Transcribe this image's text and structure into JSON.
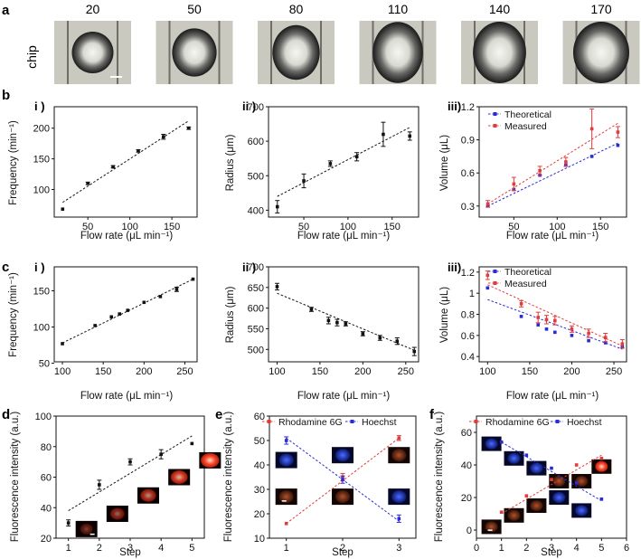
{
  "panel_labels": {
    "a": "a",
    "b": "b",
    "c": "c",
    "d": "d",
    "e": "e",
    "f": "f"
  },
  "row_a": {
    "side_label": "chip",
    "flow_rates": [
      "20",
      "50",
      "80",
      "110",
      "140",
      "170"
    ]
  },
  "chart_data": [
    {
      "id": "b1",
      "type": "scatter",
      "sublabel": "i )",
      "xlabel": "Flow rate (μL min⁻¹)",
      "ylabel": "Frequency (min⁻¹)",
      "xlim": [
        10,
        180
      ],
      "ylim": [
        55,
        235
      ],
      "xticks": [
        50,
        100,
        150
      ],
      "yticks": [
        100,
        150,
        200
      ],
      "series": [
        {
          "name": "Frequency",
          "color": "#111111",
          "x": [
            20,
            50,
            80,
            110,
            140,
            170
          ],
          "y": [
            68,
            110,
            137,
            163,
            186,
            200
          ],
          "err": [
            0,
            2,
            2,
            2,
            4,
            2
          ],
          "fit": [
            [
              20,
              79
            ],
            [
              170,
              212
            ]
          ]
        }
      ]
    },
    {
      "id": "b2",
      "type": "scatter",
      "sublabel": "ii )",
      "xlabel": "Flow rate (μL min⁻¹)",
      "ylabel": "Radius (μm)",
      "xlim": [
        10,
        180
      ],
      "ylim": [
        380,
        700
      ],
      "xticks": [
        50,
        100,
        150
      ],
      "yticks": [
        400,
        500,
        600,
        700
      ],
      "series": [
        {
          "name": "Radius",
          "color": "#111111",
          "x": [
            20,
            50,
            80,
            110,
            140,
            170
          ],
          "y": [
            410,
            485,
            535,
            555,
            620,
            615
          ],
          "err": [
            18,
            20,
            8,
            12,
            35,
            12
          ],
          "fit": [
            [
              20,
              440
            ],
            [
              170,
              640
            ]
          ]
        }
      ]
    },
    {
      "id": "b3",
      "type": "scatter",
      "sublabel": "iii)",
      "xlabel": "Flow rate (μL min⁻¹)",
      "ylabel": "Volume (μL)",
      "xlim": [
        10,
        180
      ],
      "ylim": [
        0.2,
        1.2
      ],
      "xticks": [
        50,
        100,
        150
      ],
      "yticks": [
        0.3,
        0.6,
        0.9,
        1.2
      ],
      "legend": "top-left",
      "series": [
        {
          "name": "Theoretical",
          "color": "#2b2bd6",
          "x": [
            20,
            50,
            80,
            110,
            140,
            170
          ],
          "y": [
            0.3,
            0.45,
            0.58,
            0.67,
            0.75,
            0.85
          ],
          "err": [
            0,
            0,
            0,
            0,
            0,
            0
          ],
          "fit": [
            [
              20,
              0.3
            ],
            [
              170,
              0.87
            ]
          ]
        },
        {
          "name": "Measured",
          "color": "#e23b3b",
          "x": [
            20,
            50,
            80,
            110,
            140,
            170
          ],
          "y": [
            0.32,
            0.5,
            0.62,
            0.7,
            1.0,
            0.97
          ],
          "err": [
            0.03,
            0.06,
            0.04,
            0.04,
            0.18,
            0.05
          ],
          "fit": [
            [
              20,
              0.32
            ],
            [
              170,
              1.05
            ]
          ]
        }
      ]
    },
    {
      "id": "c1",
      "type": "scatter",
      "sublabel": "i )",
      "xlabel": "Flow rate (μL min⁻¹)",
      "ylabel": "Frequency (min⁻¹)",
      "xlim": [
        90,
        265
      ],
      "ylim": [
        52,
        183
      ],
      "xticks": [
        100,
        150,
        200,
        250
      ],
      "yticks": [
        50,
        100,
        150
      ],
      "series": [
        {
          "name": "Frequency",
          "color": "#111111",
          "x": [
            100,
            140,
            160,
            170,
            180,
            200,
            220,
            240,
            260
          ],
          "y": [
            77,
            102,
            114,
            118,
            123,
            134,
            142,
            152,
            166
          ],
          "err": [
            0,
            0,
            0,
            0,
            0,
            0,
            0,
            3,
            0
          ],
          "fit": [
            [
              100,
              78
            ],
            [
              260,
              166
            ]
          ]
        }
      ]
    },
    {
      "id": "c2",
      "type": "scatter",
      "sublabel": "ii )",
      "xlabel": "Flow rate (μL min⁻¹)",
      "ylabel": "Radius (μm)",
      "xlim": [
        90,
        265
      ],
      "ylim": [
        470,
        700
      ],
      "xticks": [
        100,
        150,
        200,
        250
      ],
      "yticks": [
        500,
        550,
        600,
        650,
        700
      ],
      "series": [
        {
          "name": "Radius",
          "color": "#111111",
          "x": [
            100,
            140,
            160,
            170,
            180,
            200,
            220,
            240,
            260
          ],
          "y": [
            652,
            597,
            570,
            565,
            562,
            538,
            528,
            520,
            495
          ],
          "err": [
            8,
            5,
            8,
            8,
            5,
            5,
            6,
            8,
            10
          ],
          "fit": [
            [
              100,
              636
            ],
            [
              260,
              498
            ]
          ]
        }
      ]
    },
    {
      "id": "c3",
      "type": "scatter",
      "sublabel": "iii)",
      "xlabel": "Flow rate (μL min⁻¹)",
      "ylabel": "Volume (μL)",
      "xlim": [
        90,
        265
      ],
      "ylim": [
        0.35,
        1.25
      ],
      "xticks": [
        100,
        150,
        200,
        250
      ],
      "yticks": [
        0.4,
        0.6,
        0.8,
        1.0,
        1.2
      ],
      "legend": "top-right",
      "series": [
        {
          "name": "Theoretical",
          "color": "#2b2bd6",
          "x": [
            100,
            140,
            160,
            170,
            180,
            200,
            220,
            240,
            260
          ],
          "y": [
            1.05,
            0.78,
            0.7,
            0.66,
            0.63,
            0.6,
            0.55,
            0.53,
            0.49
          ],
          "err": [
            0,
            0,
            0,
            0,
            0,
            0,
            0,
            0,
            0
          ],
          "fit": [
            [
              100,
              0.94
            ],
            [
              260,
              0.47
            ]
          ]
        },
        {
          "name": "Measured",
          "color": "#e23b3b",
          "x": [
            100,
            140,
            160,
            170,
            180,
            200,
            220,
            240,
            260
          ],
          "y": [
            1.17,
            0.9,
            0.77,
            0.75,
            0.74,
            0.66,
            0.62,
            0.58,
            0.52
          ],
          "err": [
            0.04,
            0.03,
            0.05,
            0.04,
            0.04,
            0.03,
            0.04,
            0.04,
            0.04
          ],
          "fit": [
            [
              100,
              1.08
            ],
            [
              260,
              0.5
            ]
          ]
        }
      ]
    },
    {
      "id": "d",
      "type": "scatter",
      "sublabel": "",
      "xlabel": "Step",
      "ylabel": "Fluorescence intensity (a.u.)",
      "xlim": [
        0.6,
        5.4
      ],
      "ylim": [
        20,
        100
      ],
      "xticks": [
        1,
        2,
        3,
        4,
        5
      ],
      "yticks": [
        20,
        40,
        60,
        80,
        100
      ],
      "series": [
        {
          "name": "Intensity",
          "color": "#111111",
          "x": [
            1,
            2,
            3,
            4,
            5
          ],
          "y": [
            30,
            55,
            70,
            75,
            82
          ],
          "err": [
            2,
            3,
            2,
            3,
            0
          ],
          "fit": [
            [
              1,
              38
            ],
            [
              5,
              87
            ]
          ]
        }
      ]
    },
    {
      "id": "e",
      "type": "scatter",
      "sublabel": "",
      "xlabel": "Step",
      "ylabel": "Fluorescence intensity (a.u.)",
      "xlim": [
        0.7,
        3.3
      ],
      "ylim": [
        10,
        60
      ],
      "xticks": [
        1,
        2,
        3
      ],
      "yticks": [
        10,
        20,
        30,
        40,
        50,
        60
      ],
      "legend": "top",
      "series": [
        {
          "name": "Rhodamine 6G",
          "color": "#e23b3b",
          "x": [
            1,
            2,
            3
          ],
          "y": [
            16,
            35,
            51
          ],
          "err": [
            0,
            1.5,
            1
          ],
          "fit": [
            [
              1,
              16
            ],
            [
              3,
              51
            ]
          ]
        },
        {
          "name": "Hoechst",
          "color": "#2b2bd6",
          "x": [
            1,
            2,
            3
          ],
          "y": [
            50,
            34,
            18
          ],
          "err": [
            1.5,
            1.5,
            1.5
          ],
          "fit": [
            [
              1,
              51
            ],
            [
              3,
              17
            ]
          ]
        }
      ]
    },
    {
      "id": "f",
      "type": "scatter",
      "sublabel": "",
      "xlabel": "Step",
      "ylabel": "Fluorescence intensity (a.u.)",
      "xlim": [
        0,
        6
      ],
      "ylim": [
        -5,
        70
      ],
      "xticks": [
        0,
        1,
        2,
        3,
        4,
        5,
        6
      ],
      "yticks": [
        0,
        20,
        40,
        60
      ],
      "legend": "top",
      "series": [
        {
          "name": "Rhodamine 6G",
          "color": "#e23b3b",
          "x": [
            1,
            2,
            3,
            4,
            5
          ],
          "y": [
            11,
            21,
            31,
            40,
            44
          ],
          "err": [
            0,
            0,
            0,
            0,
            0
          ],
          "fit": [
            [
              1,
              10
            ],
            [
              5,
              46
            ]
          ]
        },
        {
          "name": "Hoechst",
          "color": "#2b2bd6",
          "x": [
            1,
            2,
            3,
            4,
            5
          ],
          "y": [
            54,
            46,
            38,
            29,
            19
          ],
          "err": [
            0,
            0,
            0,
            0,
            0
          ],
          "fit": [
            [
              1,
              54
            ],
            [
              5,
              18
            ]
          ]
        }
      ]
    }
  ]
}
